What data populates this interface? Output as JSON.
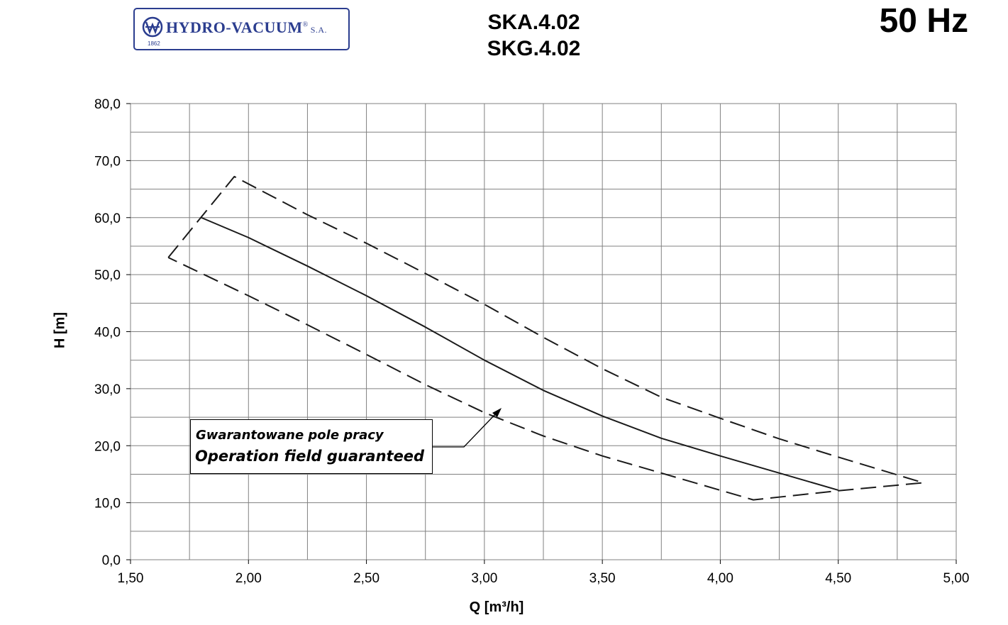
{
  "header": {
    "logo_name": "HYDRO-VACUUM",
    "logo_mark": "®",
    "logo_suffix": "S.A.",
    "logo_year": "1862",
    "title_line1": "SKA.4.02",
    "title_line2": "SKG.4.02",
    "frequency": "50 Hz"
  },
  "annotation": {
    "line1": "Gwarantowane pole pracy",
    "line2": "Operation field guaranteed"
  },
  "chart_data": {
    "type": "line",
    "xlabel": "Q [m³/h]",
    "ylabel": "H  [m]",
    "xlim": [
      1.5,
      5.0
    ],
    "ylim": [
      0,
      80
    ],
    "x_ticks": [
      "1,50",
      "2,00",
      "2,50",
      "3,00",
      "3,50",
      "4,00",
      "4,50",
      "5,00"
    ],
    "x_tick_values": [
      1.5,
      2.0,
      2.5,
      3.0,
      3.5,
      4.0,
      4.5,
      5.0
    ],
    "y_ticks": [
      "0,0",
      "10,0",
      "20,0",
      "30,0",
      "40,0",
      "50,0",
      "60,0",
      "70,0",
      "80,0"
    ],
    "y_tick_values": [
      0,
      10,
      20,
      30,
      40,
      50,
      60,
      70,
      80
    ],
    "grid": true,
    "grid_x_step": 0.25,
    "grid_y_step": 5,
    "series": [
      {
        "style": "solid",
        "x": [
          1.8,
          2.0,
          2.25,
          2.5,
          2.75,
          3.0,
          3.25,
          3.5,
          3.75,
          4.0,
          4.25,
          4.5
        ],
        "y": [
          60.0,
          56.5,
          51.5,
          46.3,
          40.8,
          35.0,
          29.7,
          25.2,
          21.3,
          18.2,
          15.2,
          12.2
        ]
      },
      {
        "style": "dashed",
        "x": [
          1.66,
          1.94,
          2.25,
          2.5,
          2.75,
          3.0,
          3.25,
          3.5,
          3.75,
          4.0,
          4.25,
          4.5,
          4.86,
          4.5,
          4.14,
          3.75,
          3.5,
          3.25,
          3.0,
          2.75,
          2.5,
          2.25,
          2.0,
          1.66
        ],
        "y": [
          53.0,
          67.2,
          60.5,
          55.5,
          50.2,
          44.8,
          39.0,
          33.5,
          28.5,
          24.8,
          21.2,
          18.0,
          13.5,
          12.1,
          10.5,
          15.2,
          18.2,
          21.7,
          25.8,
          30.7,
          36.0,
          41.2,
          46.3,
          53.0
        ]
      }
    ]
  },
  "colors": {
    "logo": "#2b3d8f",
    "grid": "#808080",
    "line": "#1a1a1a"
  }
}
